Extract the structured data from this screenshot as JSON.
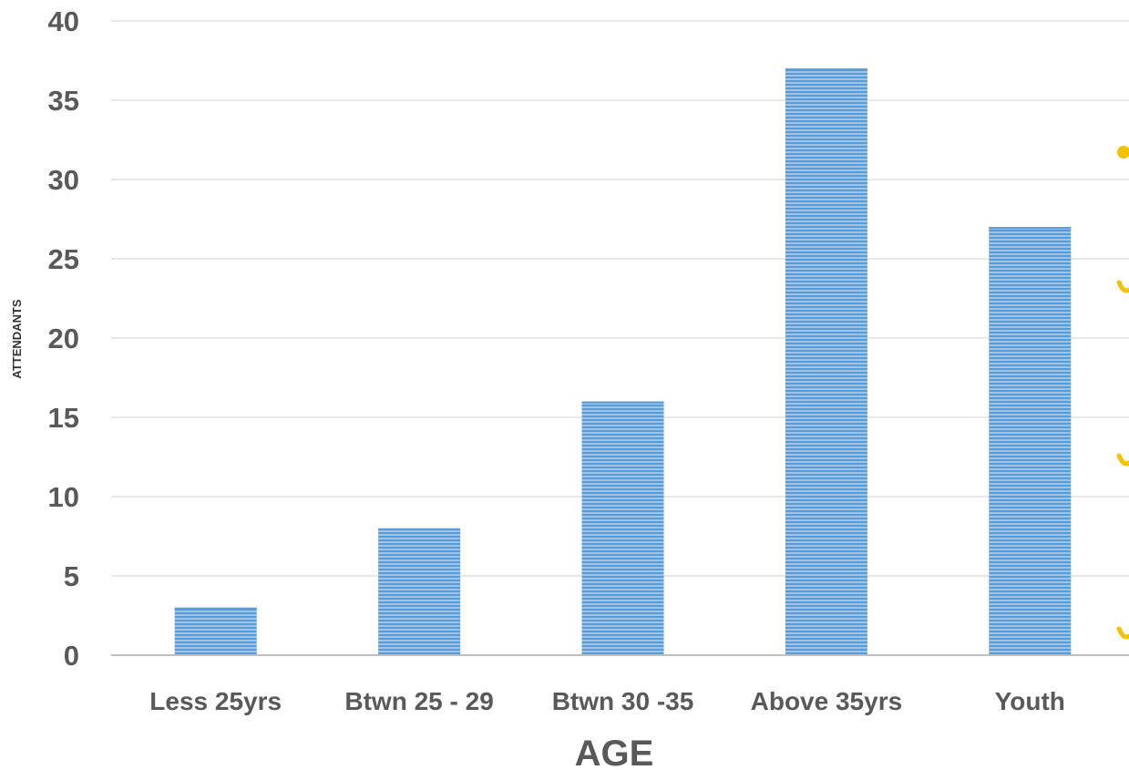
{
  "chart_data": {
    "type": "bar",
    "categories": [
      "Less 25yrs",
      "Btwn 25 - 29",
      "Btwn 30 -35",
      "Above 35yrs",
      "Youth"
    ],
    "values": [
      3,
      8,
      16,
      37,
      27
    ],
    "xlabel": "AGE",
    "ylabel": "ATTENDANTS",
    "ylim": [
      0,
      40
    ],
    "yticks": [
      0,
      5,
      10,
      15,
      20,
      25,
      30,
      35,
      40
    ],
    "grid": true,
    "bar_color": "#5b9bd5",
    "accent_color": "#f2c200"
  }
}
